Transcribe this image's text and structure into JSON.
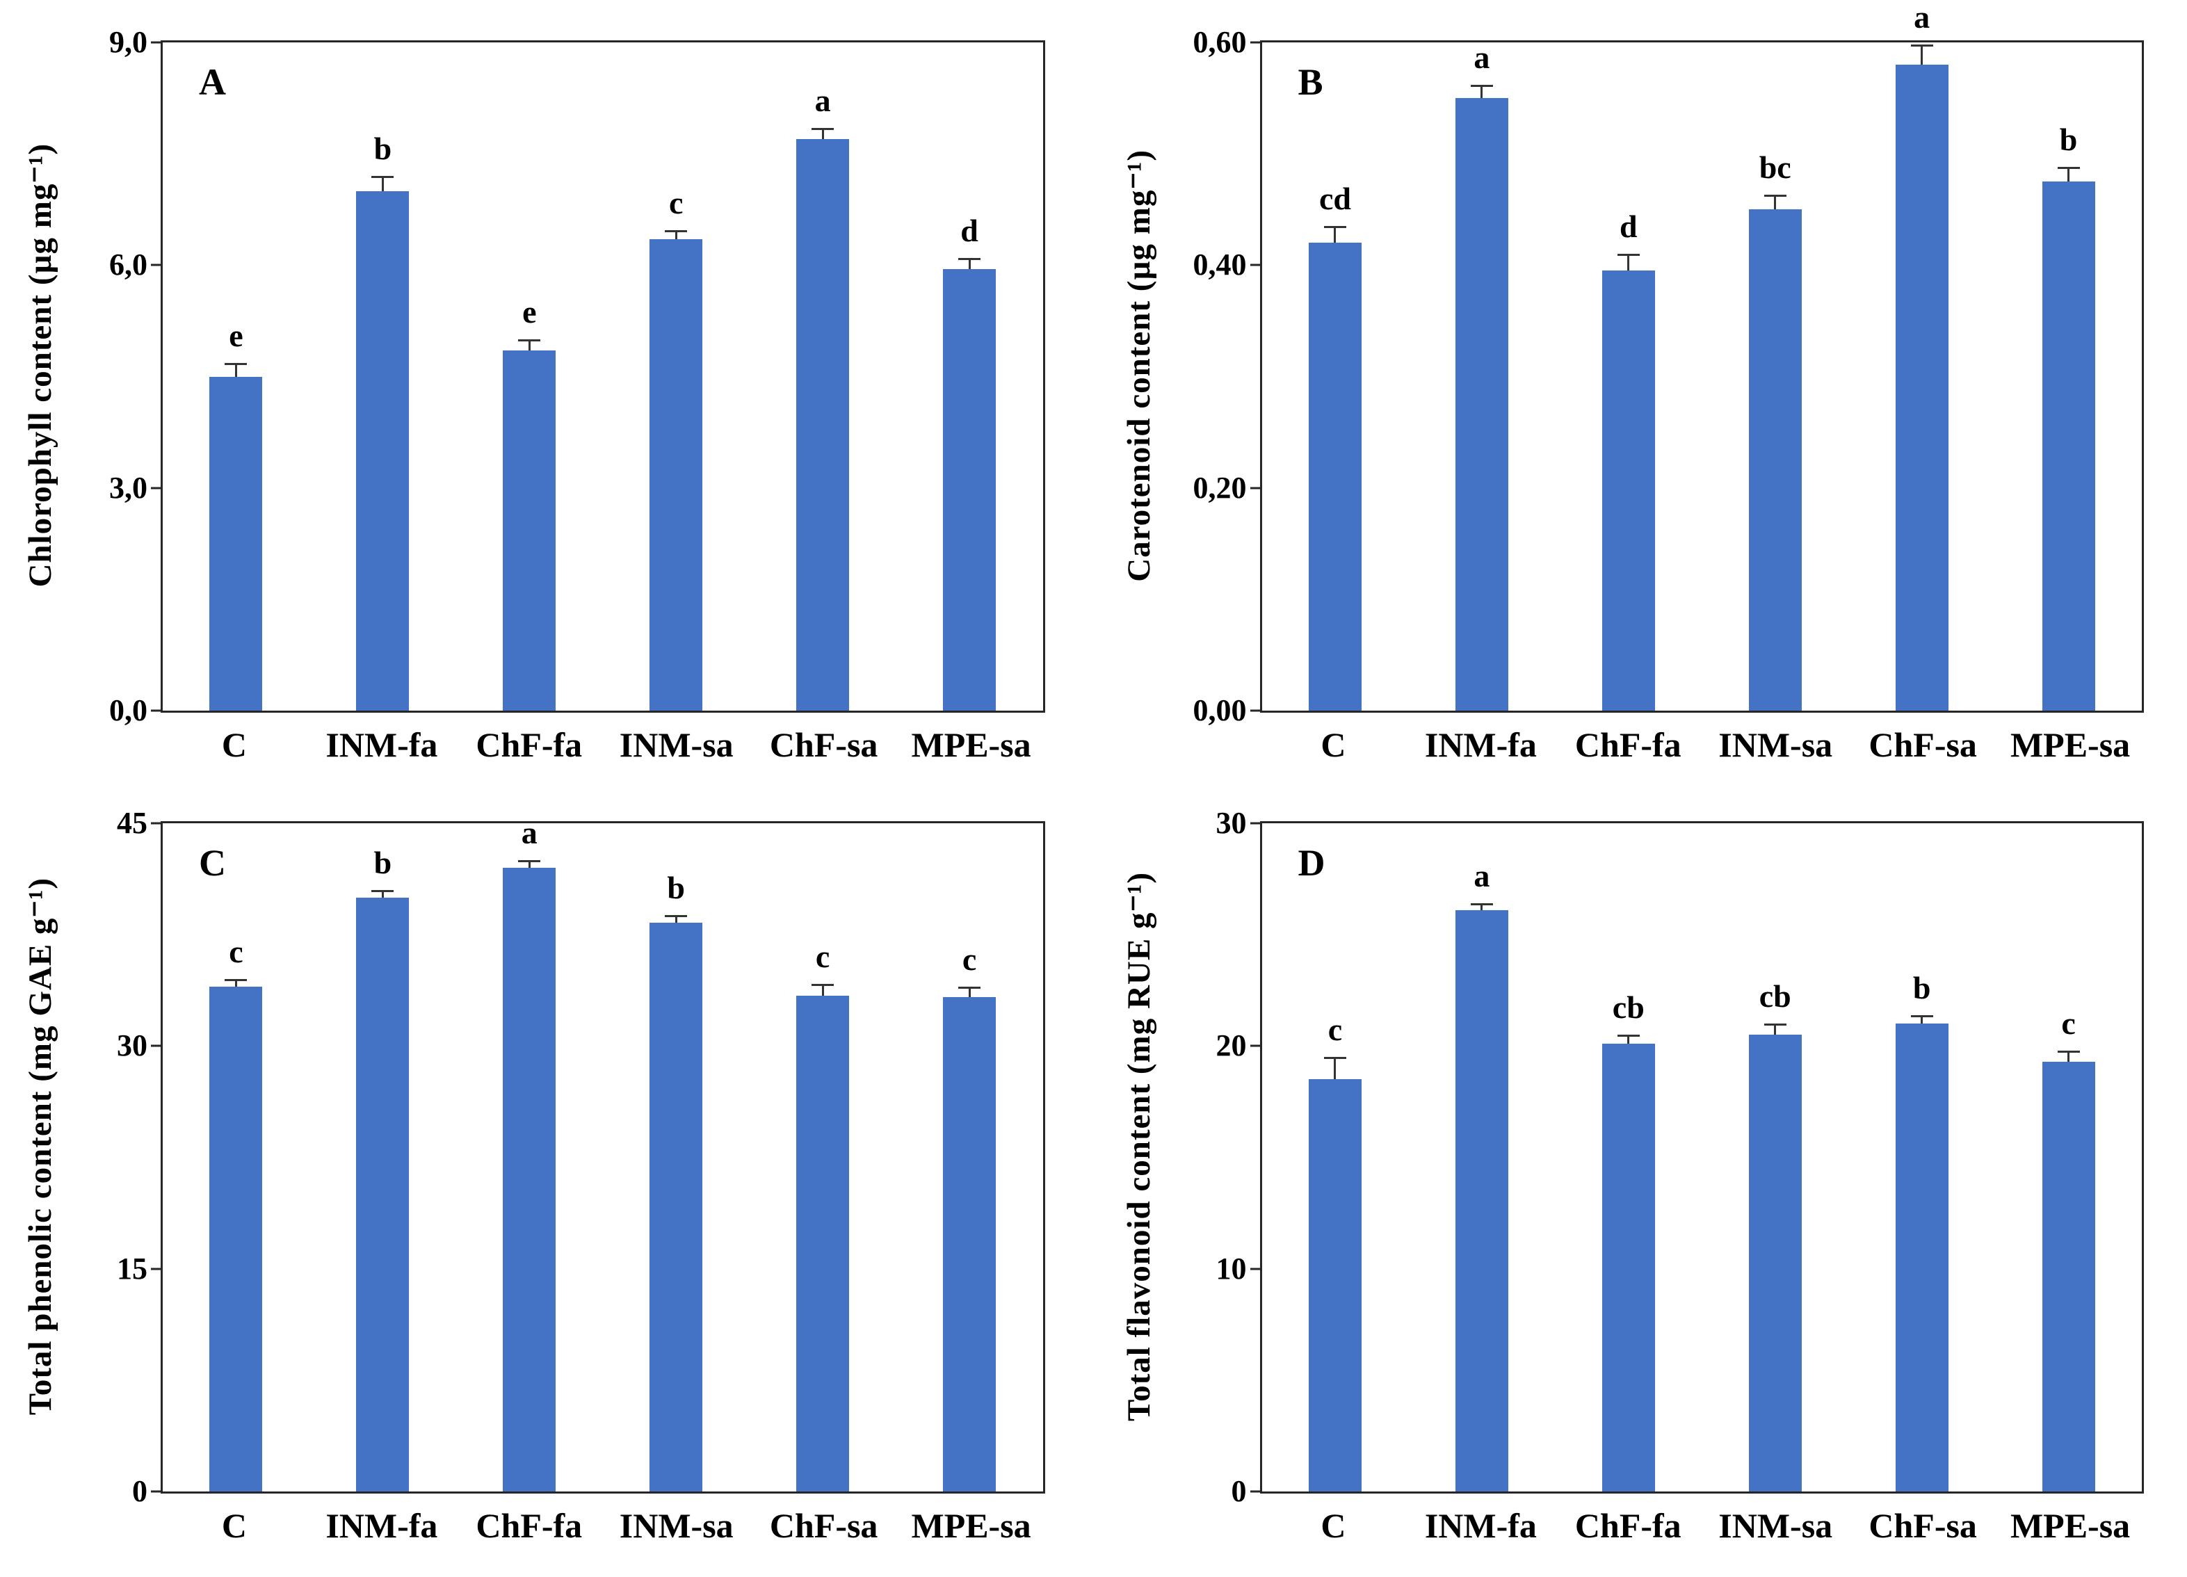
{
  "colors": {
    "bar_fill": "#4472C4",
    "error_bar": "#333333",
    "axis_frame": "#262626",
    "text": "#000000"
  },
  "chart_data": [
    {
      "type": "bar",
      "panel_label": "A",
      "title": "",
      "xlabel": "",
      "ylabel": "Chlorophyll content (µg mg⁻¹)",
      "ylim": [
        0,
        9
      ],
      "ytick_values": [
        0,
        3,
        6,
        9
      ],
      "ytick_labels": [
        "0,0",
        "3,0",
        "6,0",
        "9,0"
      ],
      "categories": [
        "C",
        "INM-fa",
        "ChF-fa",
        "INM-sa",
        "ChF-sa",
        "MPE-sa"
      ],
      "values": [
        4.5,
        7.0,
        4.85,
        6.35,
        7.7,
        5.95
      ],
      "errors": [
        0.18,
        0.2,
        0.15,
        0.12,
        0.15,
        0.15
      ],
      "letters": [
        "e",
        "b",
        "e",
        "c",
        "a",
        "d"
      ],
      "grid": false,
      "legend": false
    },
    {
      "type": "bar",
      "panel_label": "B",
      "title": "",
      "xlabel": "",
      "ylabel": "Carotenoid content (µg mg⁻¹)",
      "ylim": [
        0,
        0.6
      ],
      "ytick_values": [
        0,
        0.2,
        0.4,
        0.6
      ],
      "ytick_labels": [
        "0,00",
        "0,20",
        "0,40",
        "0,60"
      ],
      "categories": [
        "C",
        "INM-fa",
        "ChF-fa",
        "INM-sa",
        "ChF-sa",
        "MPE-sa"
      ],
      "values": [
        0.42,
        0.55,
        0.395,
        0.45,
        0.58,
        0.475
      ],
      "errors": [
        0.015,
        0.012,
        0.015,
        0.013,
        0.018,
        0.013
      ],
      "letters": [
        "cd",
        "a",
        "d",
        "bc",
        "a",
        "b"
      ],
      "grid": false,
      "legend": false
    },
    {
      "type": "bar",
      "panel_label": "C",
      "title": "",
      "xlabel": "",
      "ylabel": "Total phenolic content (mg GAE g⁻¹)",
      "ylim": [
        0,
        45
      ],
      "ytick_values": [
        0,
        15,
        30,
        45
      ],
      "ytick_labels": [
        "0",
        "15",
        "30",
        "45"
      ],
      "categories": [
        "C",
        "INM-fa",
        "ChF-fa",
        "INM-sa",
        "ChF-sa",
        "MPE-sa"
      ],
      "values": [
        34.0,
        40.0,
        42.0,
        38.3,
        33.4,
        33.3
      ],
      "errors": [
        0.5,
        0.5,
        0.5,
        0.5,
        0.8,
        0.7
      ],
      "letters": [
        "c",
        "b",
        "a",
        "b",
        "c",
        "c"
      ],
      "grid": false,
      "legend": false
    },
    {
      "type": "bar",
      "panel_label": "D",
      "title": "",
      "xlabel": "",
      "ylabel": "Total flavonoid content (mg RUE g⁻¹)",
      "ylim": [
        0,
        30
      ],
      "ytick_values": [
        0,
        10,
        20,
        30
      ],
      "ytick_labels": [
        "0",
        "10",
        "20",
        "30"
      ],
      "categories": [
        "C",
        "INM-fa",
        "ChF-fa",
        "INM-sa",
        "ChF-sa",
        "MPE-sa"
      ],
      "values": [
        18.5,
        26.1,
        20.1,
        20.5,
        21.0,
        19.3
      ],
      "errors": [
        1.0,
        0.3,
        0.4,
        0.5,
        0.4,
        0.5
      ],
      "letters": [
        "c",
        "a",
        "cb",
        "cb",
        "b",
        "c"
      ],
      "grid": false,
      "legend": false
    }
  ]
}
